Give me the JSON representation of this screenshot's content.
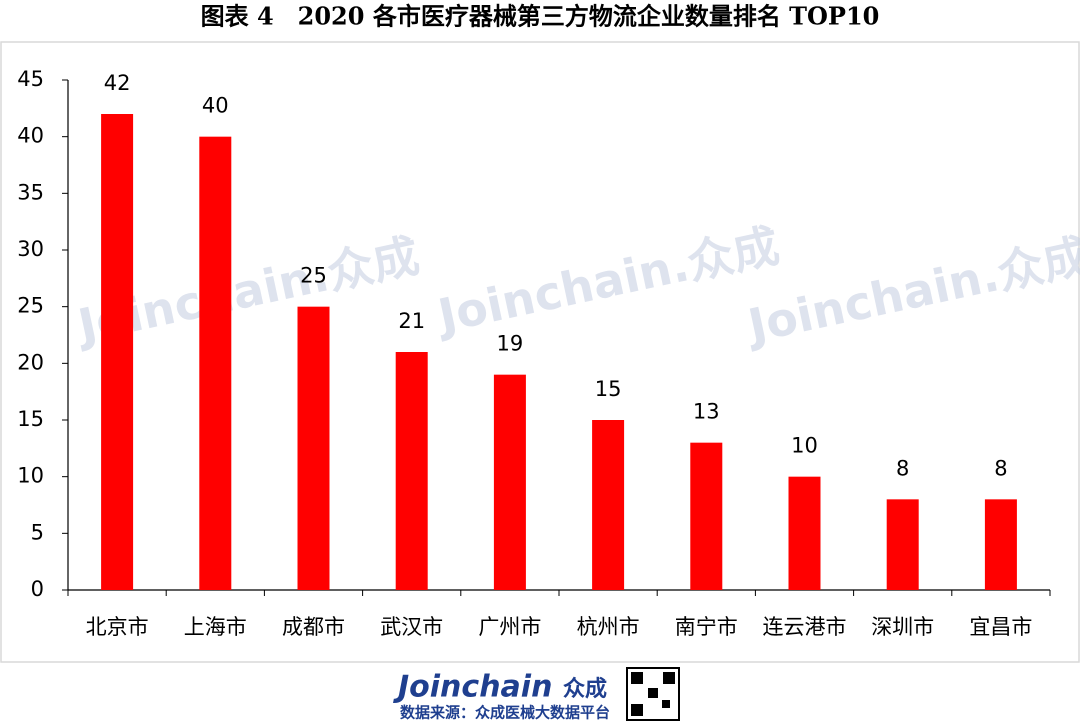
{
  "chart_data": {
    "type": "bar",
    "title": "图表 4　2020 各市医疗器械第三方物流企业数量排名 TOP10",
    "categories": [
      "北京市",
      "上海市",
      "成都市",
      "武汉市",
      "广州市",
      "杭州市",
      "南宁市",
      "连云港市",
      "深圳市",
      "宜昌市"
    ],
    "values": [
      42,
      40,
      25,
      21,
      19,
      15,
      13,
      10,
      8,
      8
    ],
    "color": "#ff0000",
    "ylim": [
      0,
      45
    ],
    "yticks": [
      0,
      5,
      10,
      15,
      20,
      25,
      30,
      35,
      40,
      45
    ],
    "grid": false
  },
  "watermark": "Joinchain.众成",
  "footer": {
    "logo": "Joinchain",
    "logo_cn": "众成",
    "source": "数据来源：众成医械大数据平台"
  }
}
